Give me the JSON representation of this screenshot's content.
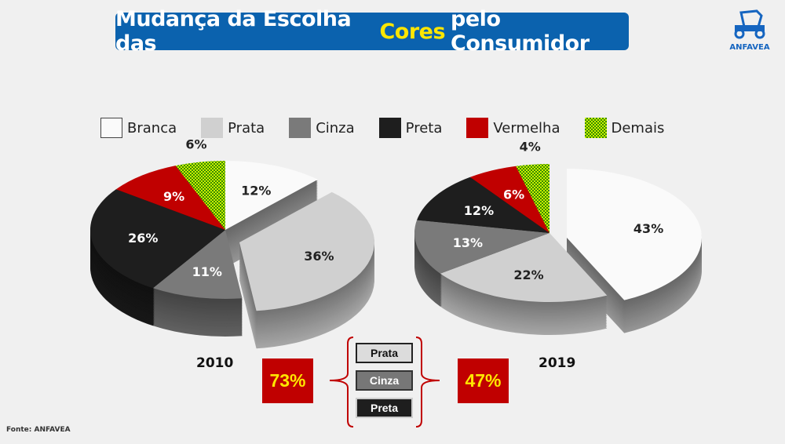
{
  "title": {
    "part1": "Mudança da Escolha das",
    "highlight": "Cores",
    "part2": "pelo Consumidor"
  },
  "logo": {
    "text": "ANFAVEA"
  },
  "colors": {
    "Branca": "#fafafa",
    "Prata": "#d0d0d0",
    "Cinza": "#7a7a7a",
    "Preta": "#1e1e1e",
    "Vermelha": "#c00000",
    "Demais": "#9be000",
    "title_bg": "#0b62ae",
    "accent": "#ffe600"
  },
  "chart_data": [
    {
      "type": "pie",
      "title": "2010",
      "categories": [
        "Branca",
        "Prata",
        "Cinza",
        "Preta",
        "Vermelha",
        "Demais"
      ],
      "values": [
        12,
        36,
        11,
        26,
        9,
        6
      ],
      "labels": [
        "12%",
        "36%",
        "11%",
        "26%",
        "9%",
        "6%"
      ],
      "exploded": "Prata",
      "legend": "top"
    },
    {
      "type": "pie",
      "title": "2019",
      "categories": [
        "Branca",
        "Prata",
        "Cinza",
        "Preta",
        "Vermelha",
        "Demais"
      ],
      "values": [
        43,
        22,
        13,
        12,
        6,
        4
      ],
      "labels": [
        "43%",
        "22%",
        "13%",
        "12%",
        "6%",
        "4%"
      ],
      "exploded": "Branca",
      "legend": "top"
    }
  ],
  "legend": [
    "Branca",
    "Prata",
    "Cinza",
    "Preta",
    "Vermelha",
    "Demais"
  ],
  "summary": {
    "left": "73%",
    "right": "47%",
    "boxes": [
      "Prata",
      "Cinza",
      "Preta"
    ]
  },
  "source": "Fonte: ANFAVEA"
}
